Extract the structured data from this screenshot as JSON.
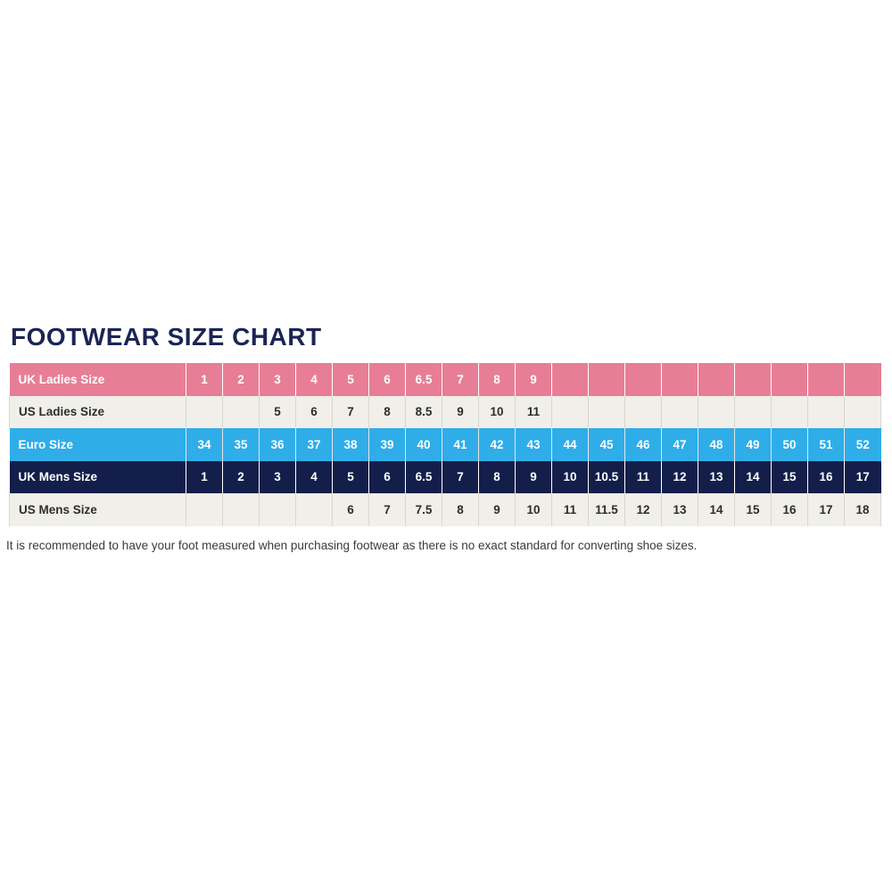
{
  "page": {
    "title": "FOOTWEAR SIZE CHART",
    "footnote": "It is recommended to have your foot measured when purchasing footwear as there is no exact standard for converting shoe sizes."
  },
  "chart_data": {
    "type": "table",
    "title": "FOOTWEAR SIZE CHART",
    "num_value_columns": 19,
    "rows": [
      {
        "label": "UK Ladies Size",
        "style": "pink",
        "values": [
          "1",
          "2",
          "3",
          "4",
          "5",
          "6",
          "6.5",
          "7",
          "8",
          "9",
          "",
          "",
          "",
          "",
          "",
          "",
          "",
          "",
          ""
        ]
      },
      {
        "label": "US Ladies Size",
        "style": "light",
        "values": [
          "",
          "",
          "5",
          "6",
          "7",
          "8",
          "8.5",
          "9",
          "10",
          "11",
          "",
          "",
          "",
          "",
          "",
          "",
          "",
          "",
          ""
        ]
      },
      {
        "label": "Euro Size",
        "style": "blue",
        "values": [
          "34",
          "35",
          "36",
          "37",
          "38",
          "39",
          "40",
          "41",
          "42",
          "43",
          "44",
          "45",
          "46",
          "47",
          "48",
          "49",
          "50",
          "51",
          "52"
        ]
      },
      {
        "label": "UK Mens Size",
        "style": "navy",
        "values": [
          "1",
          "2",
          "3",
          "4",
          "5",
          "6",
          "6.5",
          "7",
          "8",
          "9",
          "10",
          "10.5",
          "11",
          "12",
          "13",
          "14",
          "15",
          "16",
          "17"
        ]
      },
      {
        "label": "US Mens Size",
        "style": "light",
        "values": [
          "",
          "",
          "",
          "",
          "6",
          "7",
          "7.5",
          "8",
          "9",
          "10",
          "11",
          "11.5",
          "12",
          "13",
          "14",
          "15",
          "16",
          "17",
          "18"
        ]
      }
    ],
    "colors": {
      "pink_row": "#E87E95",
      "blue_row": "#2FADE9",
      "navy_row": "#131F4A",
      "light_row": "#F0EFE9",
      "title_text": "#1B2554",
      "light_row_text": "#2E2E2E",
      "colored_row_text": "#FFFFFF"
    }
  }
}
